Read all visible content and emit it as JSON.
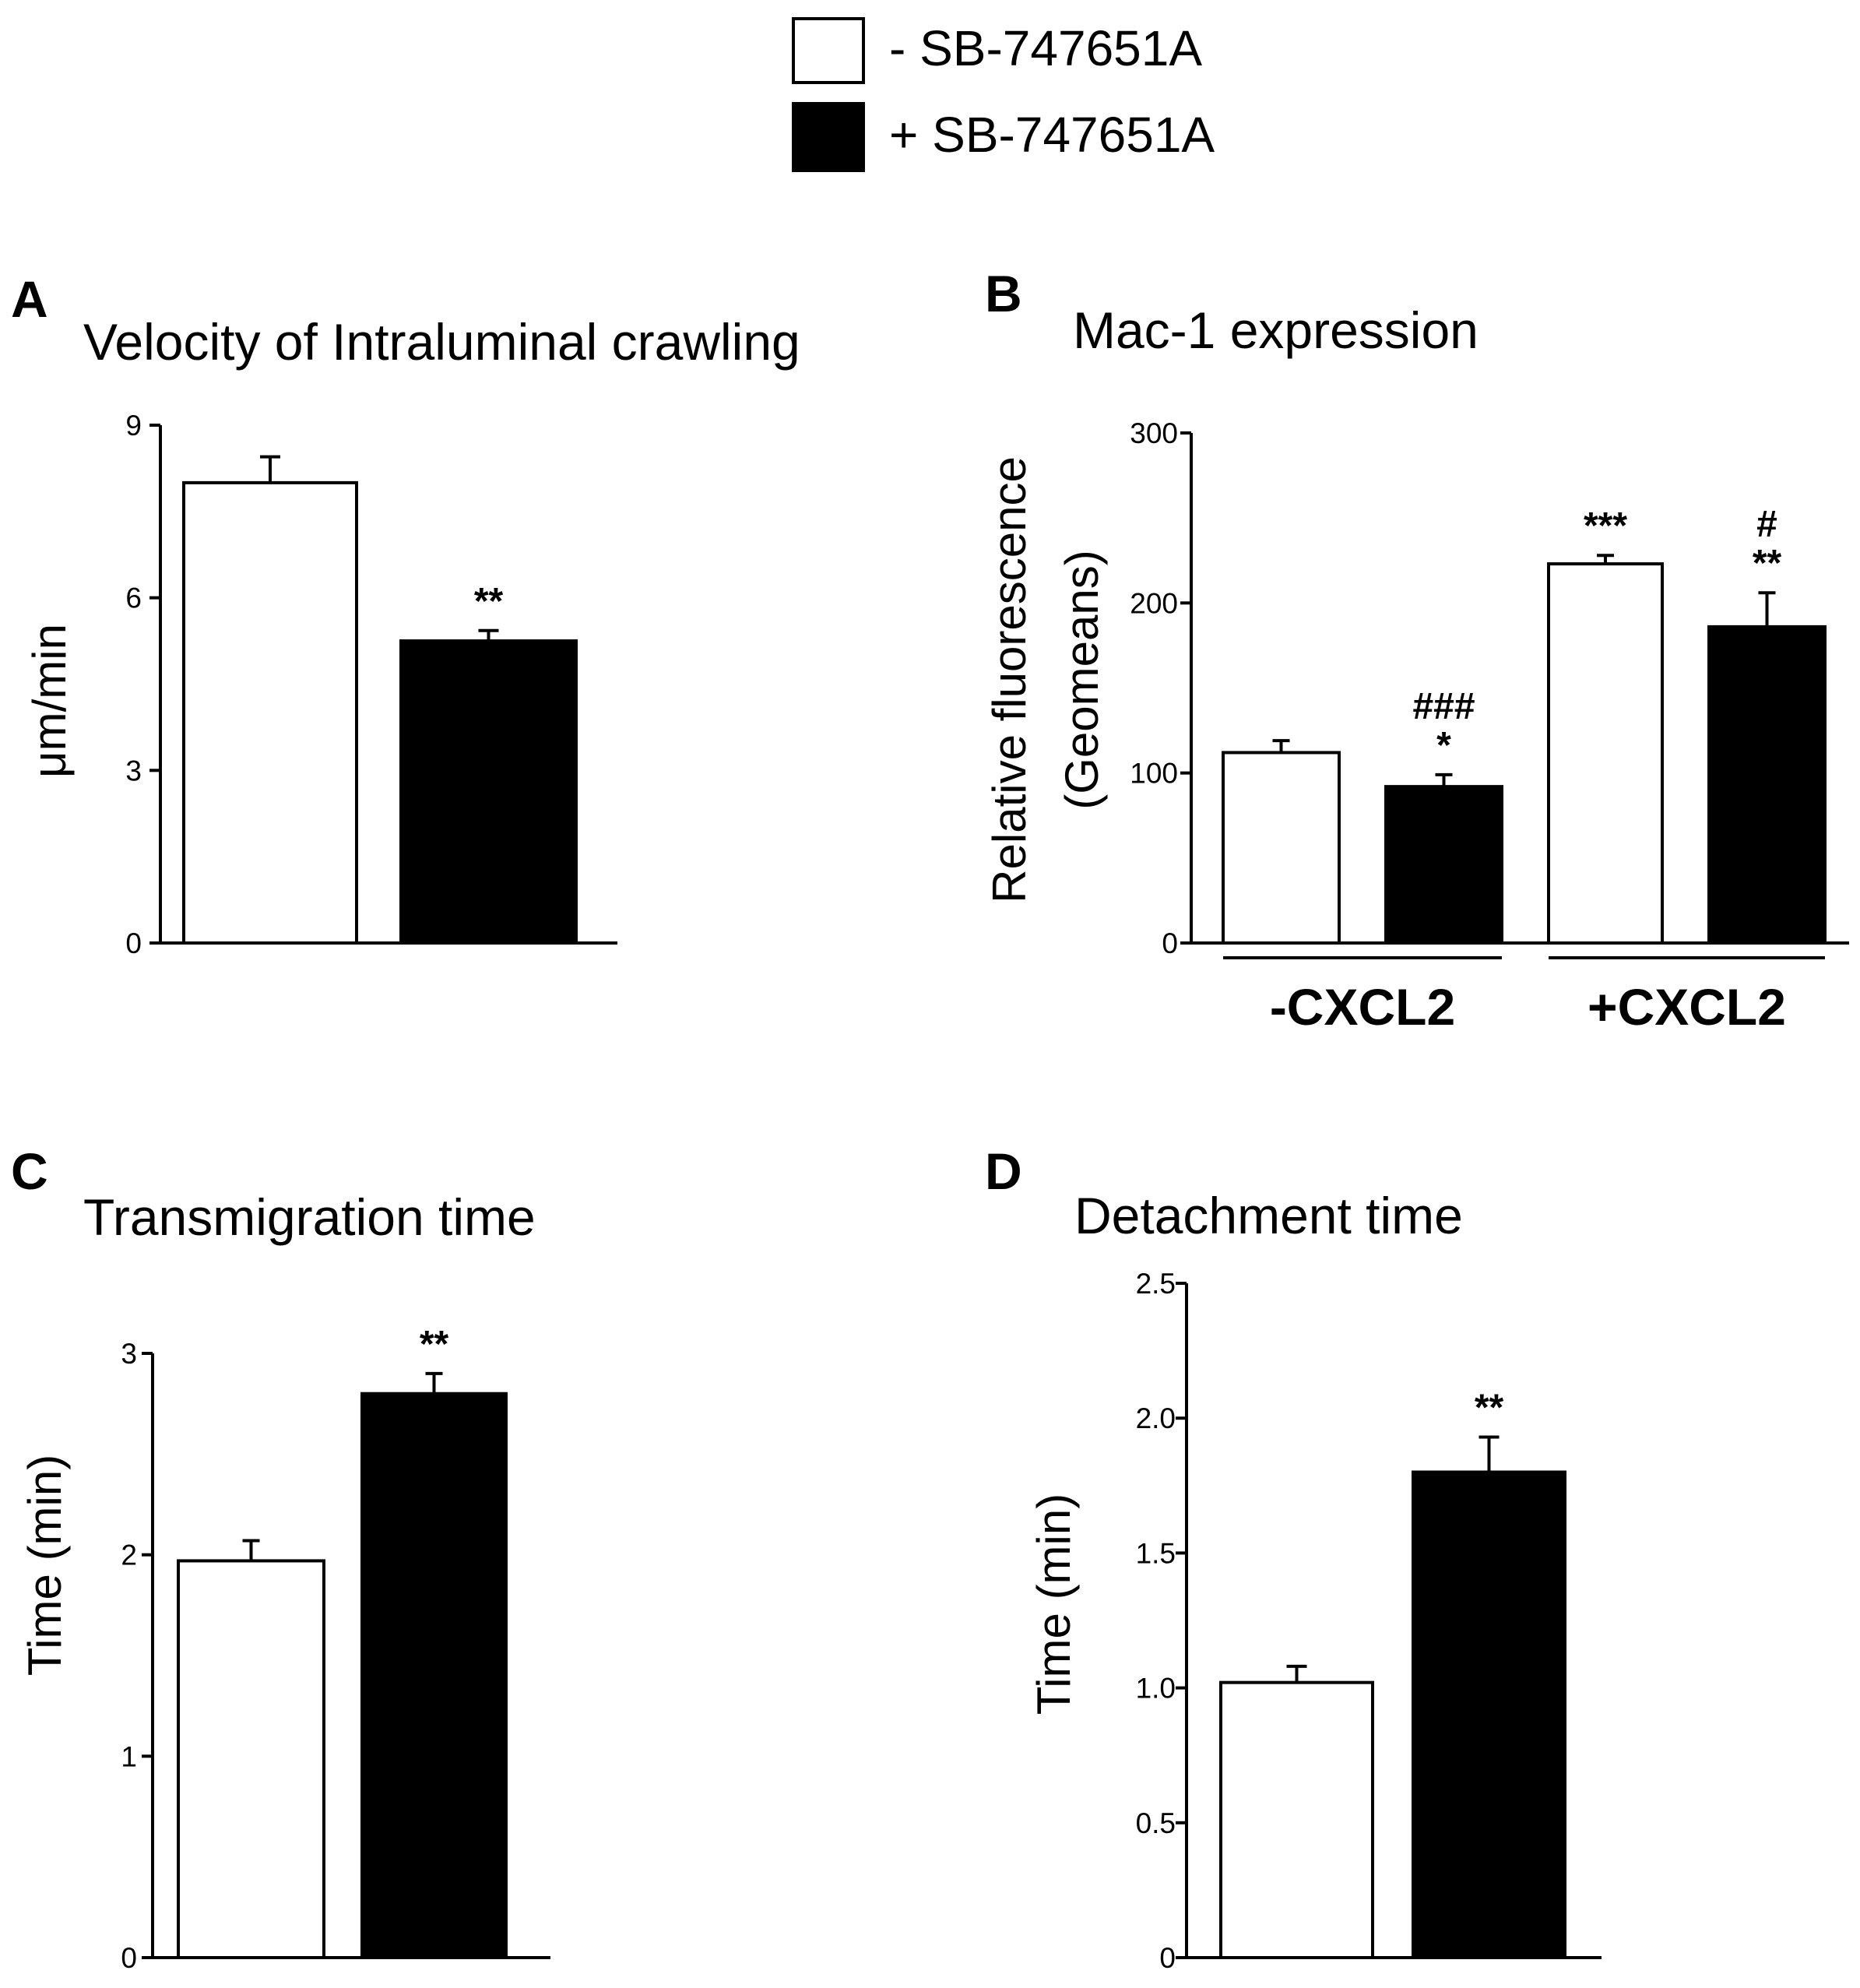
{
  "legend": [
    {
      "label": "- SB-747651A",
      "fill": "#ffffff"
    },
    {
      "label": "+ SB-747651A",
      "fill": "#000000"
    }
  ],
  "colors": {
    "minus": "#ffffff",
    "plus": "#000000",
    "stroke": "#000000"
  },
  "chart_data": [
    {
      "panel": "A",
      "type": "bar",
      "title": "Velocity of Intraluminal crawling",
      "ylabel": "μm/min",
      "xlabel": "",
      "ylim": [
        0,
        9
      ],
      "yticks": [
        "0",
        "3",
        "6",
        "9"
      ],
      "bars": [
        {
          "series": "- SB-747651A",
          "value": 8.0,
          "error": 0.45,
          "annotation": ""
        },
        {
          "series": "+ SB-747651A",
          "value": 5.25,
          "error": 0.18,
          "annotation": "**"
        }
      ]
    },
    {
      "panel": "B",
      "type": "bar",
      "title": "Mac-1 expression",
      "ylabel": "Relative fluorescence",
      "ylabel2": "(Geomeans)",
      "ylim": [
        0,
        300
      ],
      "yticks": [
        "0",
        "100",
        "200",
        "300"
      ],
      "groups": [
        "-CXCL2",
        "+CXCL2"
      ],
      "bars": [
        {
          "group": "-CXCL2",
          "series": "- SB-747651A",
          "value": 112,
          "error": 7,
          "annotation": ""
        },
        {
          "group": "-CXCL2",
          "series": "+ SB-747651A",
          "value": 92,
          "error": 7,
          "annotation": "*",
          "annotation2": "###"
        },
        {
          "group": "+CXCL2",
          "series": "- SB-747651A",
          "value": 223,
          "error": 5,
          "annotation": "***"
        },
        {
          "group": "+CXCL2",
          "series": "+ SB-747651A",
          "value": 186,
          "error": 20,
          "annotation": "**",
          "annotation2": "#"
        }
      ]
    },
    {
      "panel": "C",
      "type": "bar",
      "title": "Transmigration time",
      "ylabel": "Time (min)",
      "ylim": [
        0,
        3
      ],
      "yticks": [
        "0",
        "1",
        "2",
        "3"
      ],
      "bars": [
        {
          "series": "- SB-747651A",
          "value": 1.97,
          "error": 0.1,
          "annotation": ""
        },
        {
          "series": "+ SB-747651A",
          "value": 2.8,
          "error": 0.1,
          "annotation": "**"
        }
      ]
    },
    {
      "panel": "D",
      "type": "bar",
      "title": "Detachment time",
      "ylabel": "Time (min)",
      "ylim": [
        0,
        2.5
      ],
      "yticks": [
        "0",
        "0.5",
        "1.0",
        "1.5",
        "2.0",
        "2.5"
      ],
      "bars": [
        {
          "series": "- SB-747651A",
          "value": 1.02,
          "error": 0.06,
          "annotation": ""
        },
        {
          "series": "+ SB-747651A",
          "value": 1.8,
          "error": 0.13,
          "annotation": "**"
        }
      ]
    }
  ]
}
